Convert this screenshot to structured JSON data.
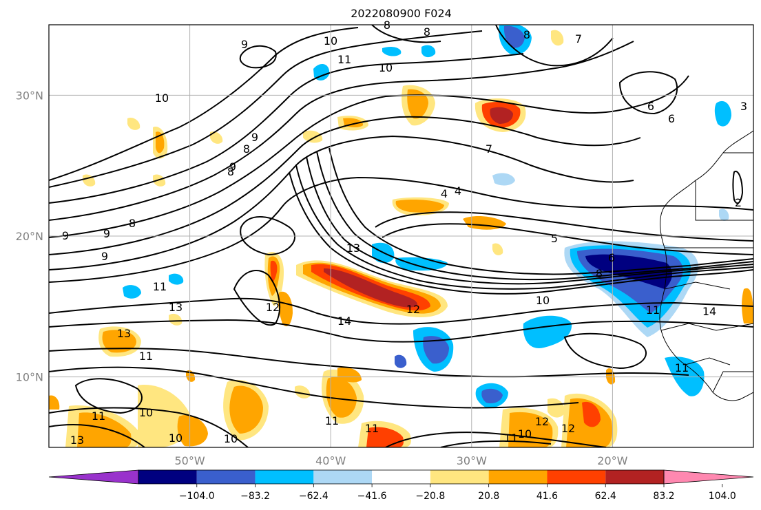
{
  "title": "2022080900 F024",
  "map": {
    "lon_range": [
      -60,
      -10
    ],
    "lat_range": [
      5,
      35
    ],
    "lon_ticks": [
      {
        "value": -50,
        "label": "50°W"
      },
      {
        "value": -40,
        "label": "40°W"
      },
      {
        "value": -30,
        "label": "30°W"
      },
      {
        "value": -20,
        "label": "20°W"
      }
    ],
    "lat_ticks": [
      {
        "value": 30,
        "label": "30°N"
      },
      {
        "value": 20,
        "label": "20°N"
      },
      {
        "value": 10,
        "label": "10°N"
      }
    ],
    "grid": true
  },
  "colorbar": {
    "orientation": "horizontal",
    "extend": "both",
    "colors": [
      "#9932cc",
      "#000080",
      "#3a5fcd",
      "#00bfff",
      "#add8f5",
      "#ffffff",
      "#ffe680",
      "#ffa500",
      "#ff4000",
      "#b22222",
      "#ff88b0"
    ],
    "tick_labels": [
      "−104.0",
      "−83.2",
      "−62.4",
      "−41.6",
      "−20.8",
      "20.8",
      "41.6",
      "62.4",
      "83.2",
      "104.0"
    ]
  },
  "contour_labels": [
    "8",
    "9",
    "9",
    "10",
    "11",
    "10",
    "10",
    "9",
    "8",
    "8",
    "7",
    "6",
    "6",
    "3",
    "4",
    "4",
    "5",
    "6",
    "8",
    "10",
    "11",
    "14",
    "2",
    "11",
    "9",
    "8",
    "9",
    "13",
    "11",
    "13",
    "12",
    "12",
    "14",
    "11",
    "11",
    "10",
    "10",
    "10",
    "11",
    "12",
    "10",
    "11",
    "12",
    "13",
    "11",
    "13",
    "9",
    "8",
    "8",
    "7"
  ],
  "colors": {
    "axes": "#000000",
    "grid": "#b0b0b0",
    "ticks": "#808080"
  }
}
